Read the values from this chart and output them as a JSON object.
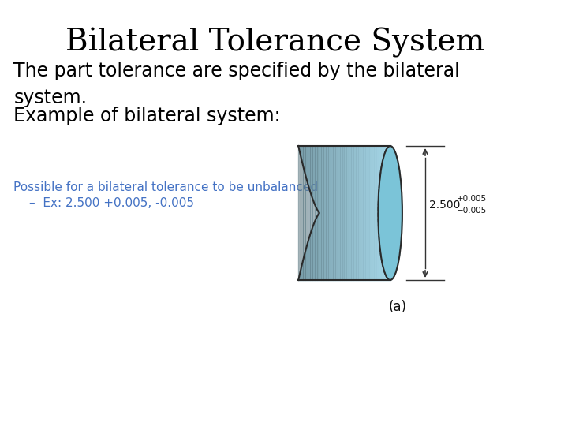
{
  "title": "Bilateral Tolerance System",
  "title_fontsize": 28,
  "title_fontweight": "normal",
  "body_text1": "The part tolerance are specified by the bilateral\nsystem.",
  "body_text2": "Example of bilateral system:",
  "body_fontsize": 17,
  "note_text1": "Possible for a bilateral tolerance to be unbalanced",
  "note_text2": "–  Ex: 2.500 +0.005, -0.005",
  "note_fontsize": 11,
  "note_color": "#4472C4",
  "dim_main": "2.500",
  "dim_upper": "+0.005",
  "dim_lower": "−0.005",
  "label_a": "(a)",
  "bg_color": "#ffffff",
  "cylinder_color_light": "#a8d8e8",
  "cylinder_color_mid": "#7bc4d8",
  "cylinder_color_dark": "#5aacca",
  "line_color": "#000000",
  "dim_color": "#000000"
}
